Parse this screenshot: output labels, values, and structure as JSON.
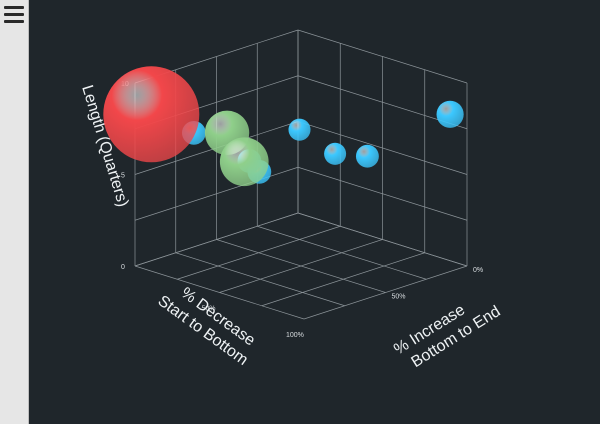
{
  "toolbar": {
    "menu_icon": "hamburger-menu-icon"
  },
  "chart_data": {
    "type": "bubble3d",
    "background": "#1f262b",
    "grid": true,
    "y_axis": {
      "label": "Length (Quarters)",
      "range": [
        0,
        10
      ],
      "ticks": [
        "0",
        "5",
        "10"
      ]
    },
    "x_axis": {
      "label_line1": "% Decrease",
      "label_line2": "Start to Bottom",
      "range": [
        0,
        100
      ],
      "ticks": [
        "50%",
        "100%"
      ]
    },
    "z_axis": {
      "label_line1": "% Increase",
      "label_line2": "Bottom to End",
      "range": [
        0,
        100
      ],
      "ticks": [
        "0%",
        "50%"
      ]
    },
    "series": [
      {
        "color": "#3cc8ff",
        "points": [
          {
            "x": 0,
            "y": 8,
            "z": 90,
            "size": 2
          },
          {
            "x": 30,
            "y": 6,
            "z": 70,
            "size": 1.5
          },
          {
            "x": 55,
            "y": 7,
            "z": 75,
            "size": 1.4
          },
          {
            "x": 25,
            "y": 6,
            "z": 25,
            "size": 1.4
          },
          {
            "x": 60,
            "y": 5,
            "z": 35,
            "size": 1.6
          },
          {
            "x": 95,
            "y": 8,
            "z": 30,
            "size": 1.6
          },
          {
            "x": 35,
            "y": 4,
            "z": 5,
            "size": 1.6
          }
        ]
      },
      {
        "color": "#8fcf8a",
        "points": [
          {
            "x": 90,
            "y": 7,
            "z": 55,
            "size": 4.5
          },
          {
            "x": 85,
            "y": 8,
            "z": 40,
            "size": 4
          }
        ]
      },
      {
        "color": "#f2474a",
        "points": [
          {
            "x": 90,
            "y": 8,
            "z": 0,
            "size": 10
          }
        ]
      }
    ]
  }
}
